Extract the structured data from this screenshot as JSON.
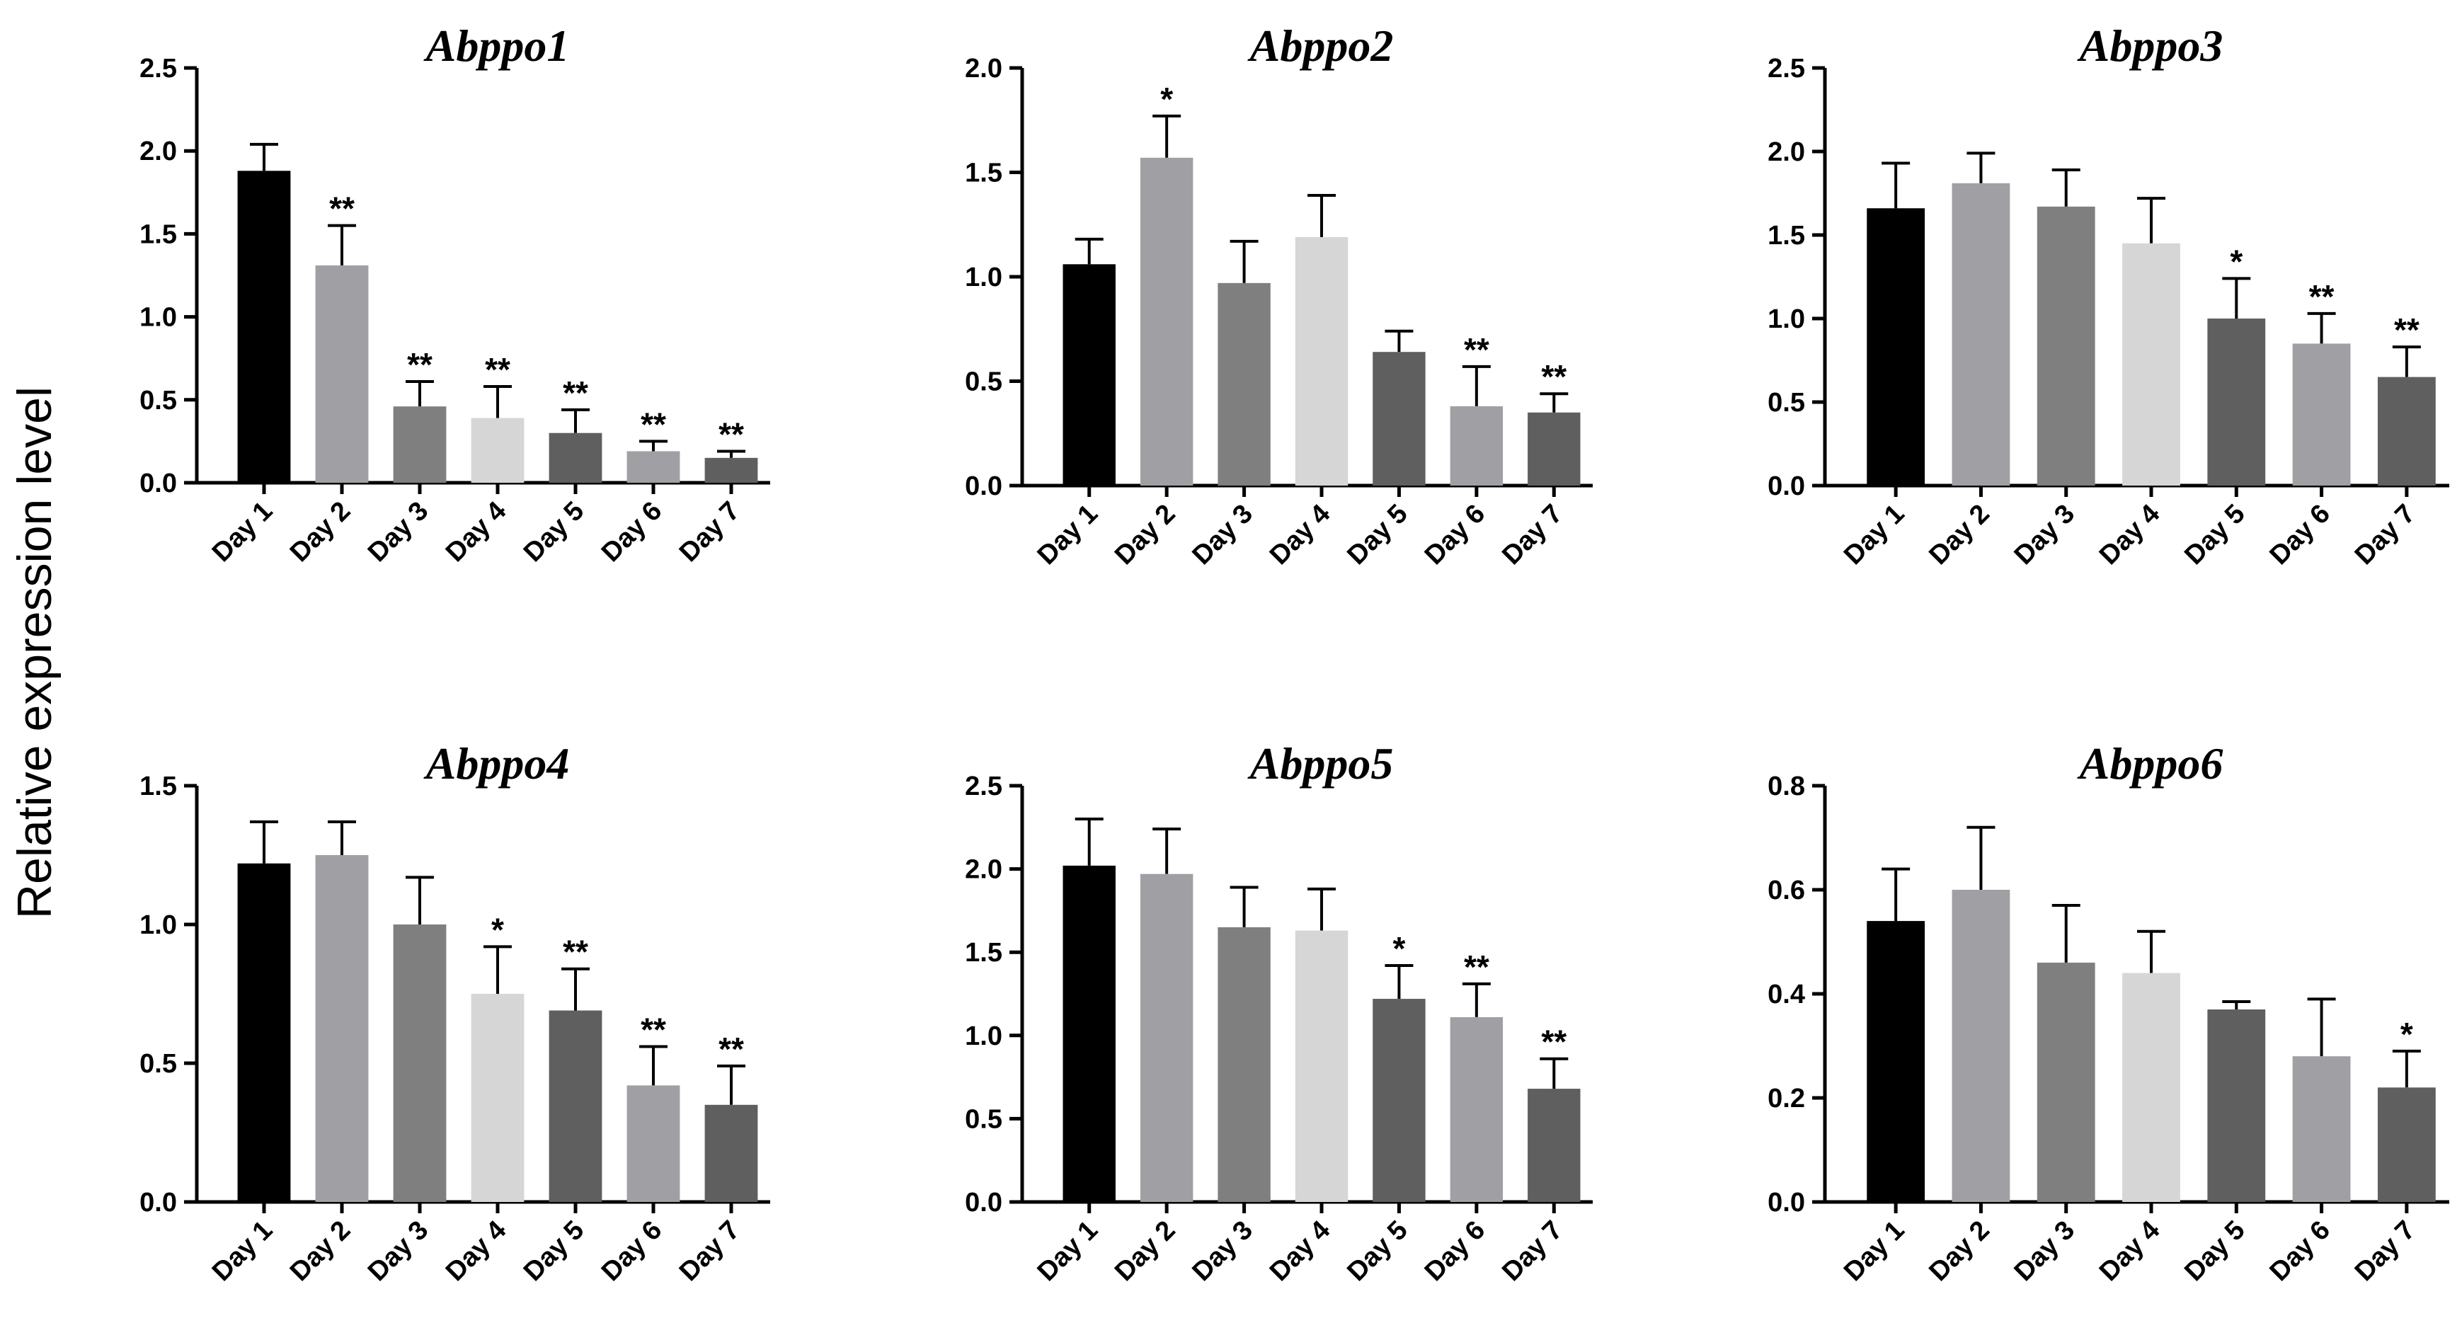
{
  "figure": {
    "ylabel": "Relative expression level"
  },
  "palette": {
    "Day 1": "#000000",
    "Day 2": "#a0a0a4",
    "Day 3": "#7f7f7f",
    "Day 4": "#d6d6d6",
    "Day 5": "#5f5f5f",
    "Day 6": "#a0a0a4",
    "Day 7": "#5f5f5f",
    "axis": "#000000"
  },
  "chart_data": [
    {
      "type": "bar",
      "title": "Abppo1",
      "categories": [
        "Day 1",
        "Day 2",
        "Day 3",
        "Day 4",
        "Day 5",
        "Day 6",
        "Day 7"
      ],
      "values": [
        1.88,
        1.31,
        0.46,
        0.39,
        0.3,
        0.19,
        0.15
      ],
      "errors": [
        0.16,
        0.24,
        0.15,
        0.19,
        0.14,
        0.06,
        0.04
      ],
      "significance": [
        "",
        "**",
        "**",
        "**",
        "**",
        "**",
        "**"
      ],
      "ylim": [
        0,
        2.5
      ],
      "yticks": [
        "0.0",
        "0.5",
        "1.0",
        "1.5",
        "2.0",
        "2.5"
      ],
      "xlabel": "",
      "ylabel": "Relative expression level"
    },
    {
      "type": "bar",
      "title": "Abppo2",
      "categories": [
        "Day 1",
        "Day 2",
        "Day 3",
        "Day 4",
        "Day 5",
        "Day 6",
        "Day 7"
      ],
      "values": [
        1.06,
        1.57,
        0.97,
        1.19,
        0.64,
        0.38,
        0.35
      ],
      "errors": [
        0.12,
        0.2,
        0.2,
        0.2,
        0.1,
        0.19,
        0.09
      ],
      "significance": [
        "",
        "*",
        "",
        "",
        "",
        "**",
        "**"
      ],
      "ylim": [
        0,
        2.0
      ],
      "yticks": [
        "0.0",
        "0.5",
        "1.0",
        "1.5",
        "2.0"
      ],
      "xlabel": "",
      "ylabel": "Relative expression level"
    },
    {
      "type": "bar",
      "title": "Abppo3",
      "categories": [
        "Day 1",
        "Day 2",
        "Day 3",
        "Day 4",
        "Day 5",
        "Day 6",
        "Day 7"
      ],
      "values": [
        1.66,
        1.81,
        1.67,
        1.45,
        1.0,
        0.85,
        0.65
      ],
      "errors": [
        0.27,
        0.18,
        0.22,
        0.27,
        0.24,
        0.18,
        0.18
      ],
      "significance": [
        "",
        "",
        "",
        "",
        "*",
        "**",
        "**"
      ],
      "ylim": [
        0,
        2.5
      ],
      "yticks": [
        "0.0",
        "0.5",
        "1.0",
        "1.5",
        "2.0",
        "2.5"
      ],
      "xlabel": "",
      "ylabel": "Relative expression level"
    },
    {
      "type": "bar",
      "title": "Abppo4",
      "categories": [
        "Day 1",
        "Day 2",
        "Day 3",
        "Day 4",
        "Day 5",
        "Day 6",
        "Day 7"
      ],
      "values": [
        1.22,
        1.25,
        1.0,
        0.75,
        0.69,
        0.42,
        0.35
      ],
      "errors": [
        0.15,
        0.12,
        0.17,
        0.17,
        0.15,
        0.14,
        0.14
      ],
      "significance": [
        "",
        "",
        "",
        "*",
        "**",
        "**",
        "**"
      ],
      "ylim": [
        0,
        1.5
      ],
      "yticks": [
        "0.0",
        "0.5",
        "1.0",
        "1.5"
      ],
      "xlabel": "",
      "ylabel": "Relative expression level"
    },
    {
      "type": "bar",
      "title": "Abppo5",
      "categories": [
        "Day 1",
        "Day 2",
        "Day 3",
        "Day 4",
        "Day 5",
        "Day 6",
        "Day 7"
      ],
      "values": [
        2.02,
        1.97,
        1.65,
        1.63,
        1.22,
        1.11,
        0.68
      ],
      "errors": [
        0.28,
        0.27,
        0.24,
        0.25,
        0.2,
        0.2,
        0.18
      ],
      "significance": [
        "",
        "",
        "",
        "",
        "*",
        "**",
        "**"
      ],
      "ylim": [
        0,
        2.5
      ],
      "yticks": [
        "0.0",
        "0.5",
        "1.0",
        "1.5",
        "2.0",
        "2.5"
      ],
      "xlabel": "",
      "ylabel": "Relative expression level"
    },
    {
      "type": "bar",
      "title": "Abppo6",
      "categories": [
        "Day 1",
        "Day 2",
        "Day 3",
        "Day 4",
        "Day 5",
        "Day 6",
        "Day 7"
      ],
      "values": [
        0.54,
        0.6,
        0.46,
        0.44,
        0.37,
        0.28,
        0.22
      ],
      "errors": [
        0.1,
        0.12,
        0.11,
        0.08,
        0.015,
        0.11,
        0.07
      ],
      "significance": [
        "",
        "",
        "",
        "",
        "",
        "",
        "*"
      ],
      "ylim": [
        0,
        0.8
      ],
      "yticks": [
        "0.0",
        "0.2",
        "0.4",
        "0.6",
        "0.8"
      ],
      "xlabel": "",
      "ylabel": "Relative expression level"
    }
  ]
}
